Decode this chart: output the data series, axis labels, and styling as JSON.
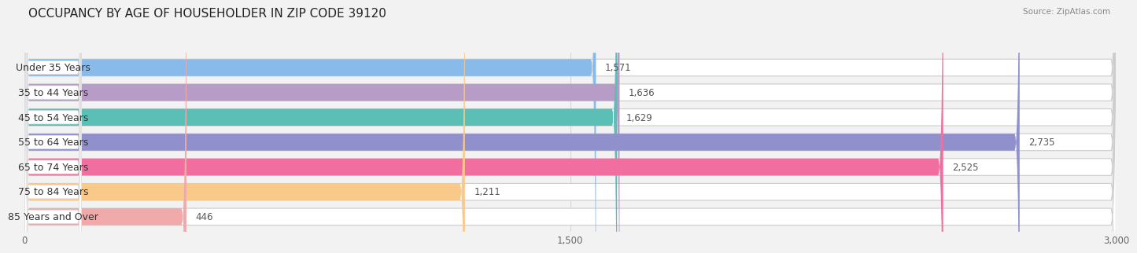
{
  "title": "OCCUPANCY BY AGE OF HOUSEHOLDER IN ZIP CODE 39120",
  "source": "Source: ZipAtlas.com",
  "categories": [
    "Under 35 Years",
    "35 to 44 Years",
    "45 to 54 Years",
    "55 to 64 Years",
    "65 to 74 Years",
    "75 to 84 Years",
    "85 Years and Over"
  ],
  "values": [
    1571,
    1636,
    1629,
    2735,
    2525,
    1211,
    446
  ],
  "bar_colors": [
    "#89BBEA",
    "#B89CC8",
    "#5CBFB5",
    "#9090CC",
    "#F06FA0",
    "#F9C98A",
    "#F0AAAA"
  ],
  "xlim_max": 3000,
  "xticks": [
    0,
    1500,
    3000
  ],
  "background_color": "#f2f2f2",
  "bar_background_color": "#ffffff",
  "bar_border_color": "#cccccc",
  "title_fontsize": 11,
  "label_fontsize": 9,
  "value_fontsize": 8.5,
  "tick_fontsize": 8.5
}
